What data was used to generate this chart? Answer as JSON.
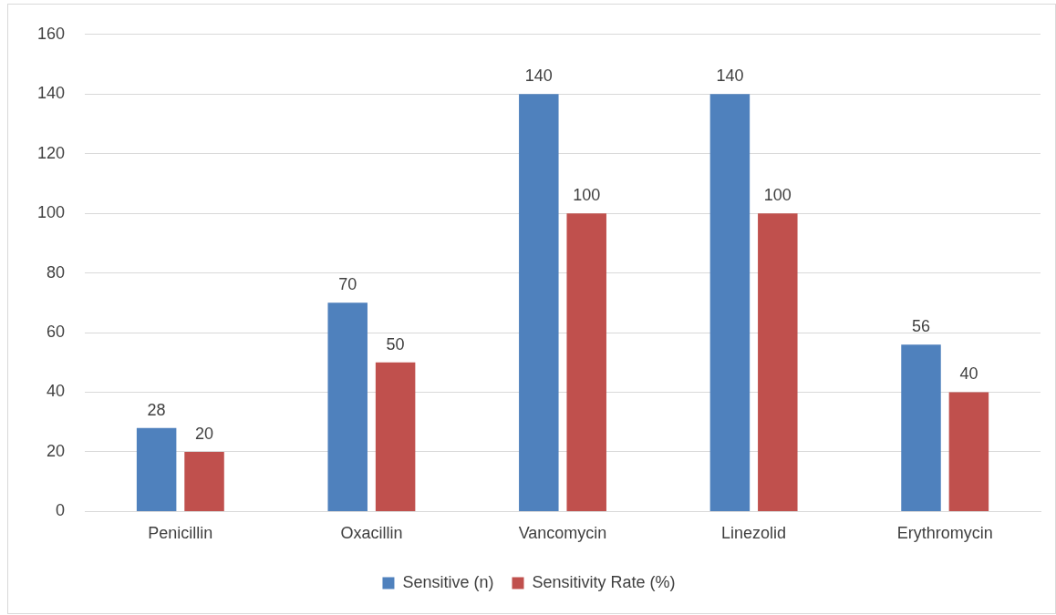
{
  "chart_data": {
    "type": "bar",
    "categories": [
      "Penicillin",
      "Oxacillin",
      "Vancomycin",
      "Linezolid",
      "Erythromycin"
    ],
    "series": [
      {
        "name": "Sensitive (n)",
        "color": "#4f81bd",
        "values": [
          28,
          70,
          140,
          140,
          56
        ]
      },
      {
        "name": "Sensitivity Rate (%)",
        "color": "#c0504d",
        "values": [
          20,
          50,
          100,
          100,
          40
        ]
      }
    ],
    "ylim": [
      0,
      160
    ],
    "yticks": [
      0,
      20,
      40,
      60,
      80,
      100,
      120,
      140,
      160
    ],
    "grid": "y",
    "legend": "bottom",
    "data_labels": true
  }
}
